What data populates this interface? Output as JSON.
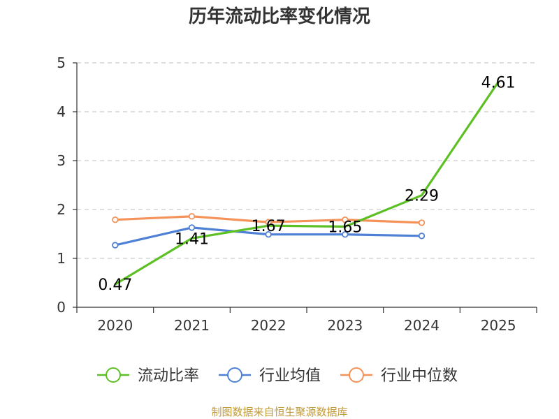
{
  "chart_data": {
    "type": "line",
    "title": "历年流动比率变化情况",
    "categories": [
      "2020",
      "2021",
      "2022",
      "2023",
      "2024",
      "2025"
    ],
    "ylim": [
      0,
      5
    ],
    "yticks": [
      "0",
      "1",
      "2",
      "3",
      "4",
      "5"
    ],
    "grid": true,
    "legend_position": "bottom",
    "series": [
      {
        "name": "流动比率",
        "color": "#5cc025",
        "values": [
          0.47,
          1.41,
          1.67,
          1.65,
          2.29,
          4.61
        ],
        "labels": [
          "0.47",
          "1.41",
          "1.67",
          "1.65",
          "2.29",
          "4.61"
        ],
        "show_labels": true
      },
      {
        "name": "行业均值",
        "color": "#4e80d6",
        "values": [
          1.27,
          1.63,
          1.49,
          1.49,
          1.46,
          null
        ],
        "show_labels": false
      },
      {
        "name": "行业中位数",
        "color": "#f4925a",
        "values": [
          1.79,
          1.86,
          1.74,
          1.79,
          1.73,
          null
        ],
        "show_labels": false
      }
    ],
    "source": "制图数据来自恒生聚源数据库"
  }
}
